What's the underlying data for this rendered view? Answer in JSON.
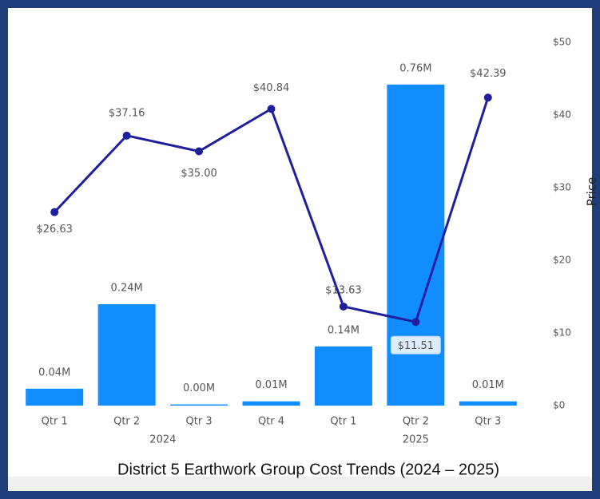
{
  "chart_data": {
    "type": "combo",
    "title": "District 5 Earthwork Group Cost Trends (2024 – 2025)",
    "y2_label": "Price",
    "groups": [
      {
        "name": "2024",
        "categories": [
          "Qtr 1",
          "Qtr 2",
          "Qtr 3",
          "Qtr 4"
        ]
      },
      {
        "name": "2025",
        "categories": [
          "Qtr 1",
          "Qtr 2",
          "Qtr 3"
        ]
      }
    ],
    "series": [
      {
        "type": "bar",
        "color": "#118dff",
        "values": [
          0.04,
          0.24,
          0.0,
          0.01,
          0.14,
          0.76,
          0.01
        ],
        "value_labels": [
          "0.04M",
          "0.24M",
          "0.00M",
          "0.01M",
          "0.14M",
          "0.76M",
          "0.01M"
        ]
      },
      {
        "type": "line",
        "axis": "y2",
        "color": "#1f1f9e",
        "values": [
          26.63,
          37.16,
          35.0,
          40.84,
          13.63,
          11.51,
          42.39
        ],
        "value_labels": [
          "$26.63",
          "$37.16",
          "$35.00",
          "$40.84",
          "$13.63",
          "$11.51",
          "$42.39"
        ]
      }
    ],
    "ylim": [
      0,
      0.86
    ],
    "y2lim": [
      0,
      50
    ],
    "y2ticks": [
      {
        "value": 0,
        "label": "$0"
      },
      {
        "value": 10,
        "label": "$10"
      },
      {
        "value": 20,
        "label": "$20"
      },
      {
        "value": 30,
        "label": "$30"
      },
      {
        "value": 40,
        "label": "$40"
      },
      {
        "value": 50,
        "label": "$50"
      }
    ]
  }
}
